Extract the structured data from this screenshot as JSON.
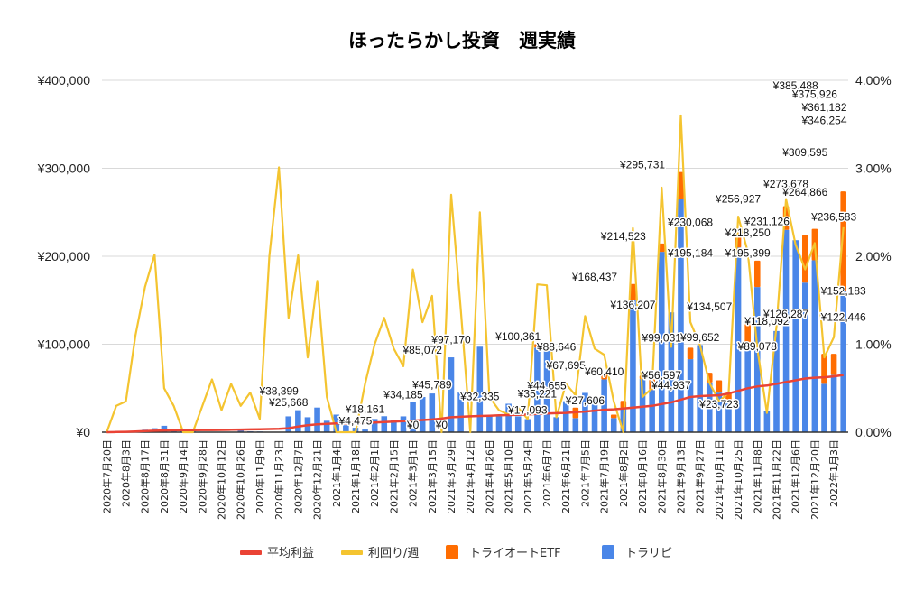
{
  "colors": {
    "average_profit": "#ea4335",
    "yield_per_week": "#f4c430",
    "triauto_etf": "#ff6d01",
    "trarip": "#4a86e8",
    "grid": "#d9d9d9",
    "axis": "#333333"
  },
  "chart_data": {
    "type": "bar",
    "title": "ほったらかし投資　週実績",
    "stacked": true,
    "xlabel": "",
    "ylabel": "",
    "ylim": [
      0,
      400000
    ],
    "y2lim": [
      0,
      0.04
    ],
    "yticks": [
      "¥0",
      "¥100,000",
      "¥200,000",
      "¥300,000",
      "¥400,000"
    ],
    "y2ticks": [
      "0.00%",
      "1.00%",
      "2.00%",
      "3.00%",
      "4.00%"
    ],
    "grid": true,
    "legend_position": "bottom",
    "legend": [
      "平均利益",
      "利回り/週",
      "トライオートETF",
      "トラリピ"
    ],
    "x_tick_labels": [
      "2020年7月20日",
      "2020年8月3日",
      "2020年8月17日",
      "2020年8月31日",
      "2020年9月14日",
      "2020年9月28日",
      "2020年10月12日",
      "2020年10月26日",
      "2020年11月9日",
      "2020年11月23日",
      "2020年12月7日",
      "2020年12月21日",
      "2021年1月4日",
      "2021年1月18日",
      "2021年2月1日",
      "2021年2月15日",
      "2021年3月1日",
      "2021年3月15日",
      "2021年3月29日",
      "2021年4月12日",
      "2021年4月26日",
      "2021年5月10日",
      "2021年5月24日",
      "2021年6月7日",
      "2021年6月21日",
      "2021年7月5日",
      "2021年7月19日",
      "2021年8月2日",
      "2021年8月16日",
      "2021年8月30日",
      "2021年9月13日",
      "2021年9月27日",
      "2021年10月11日",
      "2021年10月25日",
      "2021年11月8日",
      "2021年11月22日",
      "2021年12月6日",
      "2021年12月20日",
      "2022年1月3日"
    ],
    "series": [
      {
        "name": "トラリピ",
        "kind": "bar",
        "axis": "left",
        "values": [
          0,
          300,
          500,
          1500,
          2800,
          4500,
          7288,
          3000,
          1500,
          800,
          0,
          0,
          500,
          300,
          2500,
          1000,
          800,
          500,
          500,
          18000,
          25000,
          17000,
          28000,
          13000,
          20000,
          8000,
          5000,
          3000,
          15000,
          18161,
          14000,
          18000,
          34185,
          40000,
          44000,
          0,
          85072,
          45789,
          0,
          97170,
          19500,
          18000,
          32335,
          18000,
          14900,
          96000,
          100361,
          17093,
          35221,
          16000,
          44655,
          40000,
          60000,
          16000,
          27606,
          150000,
          60410,
          48000,
          205000,
          136207,
          265000,
          83000,
          99031,
          56597,
          44937,
          35000,
          210000,
          99652,
          165000,
          23723,
          115000,
          230000,
          218250,
          170000,
          195399,
          55000,
          65000,
          160000
        ]
      },
      {
        "name": "トライオートETF",
        "kind": "bar",
        "axis": "left",
        "values": [
          0,
          0,
          0,
          0,
          0,
          0,
          0,
          0,
          0,
          0,
          0,
          0,
          0,
          0,
          0,
          0,
          0,
          0,
          0,
          0,
          0,
          0,
          0,
          0,
          0,
          0,
          0,
          0,
          0,
          0,
          0,
          0,
          0,
          0,
          0,
          0,
          0,
          0,
          0,
          0,
          0,
          0,
          0,
          0,
          0,
          4000,
          0,
          0,
          0,
          12000,
          0,
          0,
          7000,
          4000,
          8000,
          18437,
          4000,
          12000,
          9523,
          0,
          30731,
          13000,
          0,
          11000,
          14000,
          9937,
          20068,
          30000,
          30000,
          0,
          0,
          26927,
          0,
          54000,
          35727,
          34092,
          24078,
          113678
        ]
      },
      {
        "name": "利回り/週",
        "kind": "line",
        "axis": "right",
        "values": [
          0.0,
          0.003,
          0.0035,
          0.011,
          0.0165,
          0.0202,
          0.005,
          0.003,
          0.0,
          0.0,
          0.003,
          0.006,
          0.0025,
          0.0055,
          0.003,
          0.0045,
          0.0015,
          0.02,
          0.0301,
          0.013,
          0.0201,
          0.0085,
          0.0172,
          0.004,
          0.0,
          0.0,
          0.0,
          0.0055,
          0.01,
          0.013,
          0.0095,
          0.0075,
          0.0185,
          0.0125,
          0.0155,
          0.0,
          0.027,
          0.014,
          0.0,
          0.025,
          0.004,
          0.0025,
          0.002,
          0.0028,
          0.0015,
          0.0168,
          0.0167,
          0.0017,
          0.0055,
          0.0042,
          0.0132,
          0.0095,
          0.0088,
          0.0035,
          0.0,
          0.0232,
          0.004,
          0.005,
          0.0278,
          0.0097,
          0.036,
          0.0125,
          0.0099,
          0.0056,
          0.0035,
          0.0045,
          0.0245,
          0.0205,
          0.0095,
          0.0022,
          0.012,
          0.0265,
          0.0213,
          0.0185,
          0.0215,
          0.0085,
          0.0108,
          0.0233
        ]
      },
      {
        "name": "平均利益",
        "kind": "line",
        "axis": "left",
        "values": [
          0,
          200,
          400,
          800,
          1200,
          1600,
          2000,
          2200,
          2300,
          2400,
          2500,
          2500,
          2600,
          2800,
          3000,
          3200,
          3400,
          3600,
          3800,
          4500,
          6500,
          8000,
          9000,
          9500,
          10000,
          10200,
          10500,
          10500,
          11000,
          11500,
          12000,
          12500,
          13000,
          13800,
          14500,
          15500,
          17000,
          17500,
          18000,
          18500,
          18800,
          19200,
          19500,
          19800,
          20200,
          20800,
          21200,
          21600,
          22000,
          22800,
          23500,
          24500,
          25500,
          26000,
          27000,
          28000,
          29000,
          30000,
          32000,
          34000,
          37000,
          40000,
          41000,
          41500,
          42000,
          44000,
          47000,
          50000,
          52000,
          53000,
          55000,
          57000,
          59000,
          61000,
          62000,
          62500,
          63500,
          65000
        ]
      }
    ],
    "data_labels": [
      {
        "week": 19,
        "text": "¥38,399"
      },
      {
        "week": 36,
        "text": "¥85,072"
      },
      {
        "week": 37,
        "text": "¥45,789"
      },
      {
        "week": 38,
        "text": "¥0"
      },
      {
        "week": 35,
        "text": "¥0"
      },
      {
        "week": 33,
        "text": "¥34,185"
      },
      {
        "week": 21,
        "text": "¥25,668"
      },
      {
        "week": 28,
        "text": "¥4,475"
      },
      {
        "week": 29,
        "text": "¥18,161"
      },
      {
        "week": 39,
        "text": "¥97,170"
      },
      {
        "week": 42,
        "text": "¥32,335"
      },
      {
        "week": 46,
        "text": "¥100,361"
      },
      {
        "week": 47,
        "text": "¥17,093"
      },
      {
        "week": 50,
        "text": "¥44,655"
      },
      {
        "week": 48,
        "text": "¥35,221"
      },
      {
        "week": 51,
        "text": "¥88,646"
      },
      {
        "week": 52,
        "text": "¥67,695"
      },
      {
        "week": 54,
        "text": "¥27,606"
      },
      {
        "week": 55,
        "text": "¥168,437"
      },
      {
        "week": 56,
        "text": "¥60,410"
      },
      {
        "week": 58,
        "text": "¥214,523"
      },
      {
        "week": 59,
        "text": "¥136,207"
      },
      {
        "week": 60,
        "text": "¥295,731"
      },
      {
        "week": 62,
        "text": "¥99,031"
      },
      {
        "week": 63,
        "text": "¥56,597"
      },
      {
        "week": 64,
        "text": "¥44,937"
      },
      {
        "week": 66,
        "text": "¥230,068"
      },
      {
        "week": 66,
        "text": "¥195,184"
      },
      {
        "week": 67,
        "text": "¥99,652"
      },
      {
        "week": 69,
        "text": "¥23,723"
      },
      {
        "week": 68,
        "text": "¥134,507"
      },
      {
        "week": 71,
        "text": "¥256,927"
      },
      {
        "week": 72,
        "text": "¥218,250"
      },
      {
        "week": 72,
        "text": "¥195,399"
      },
      {
        "week": 74,
        "text": "¥231,126"
      },
      {
        "week": 74,
        "text": "¥118,092"
      },
      {
        "week": 73,
        "text": "¥89,078"
      },
      {
        "week": 76,
        "text": "¥126,287"
      },
      {
        "week": 76,
        "text": "¥273,678"
      },
      {
        "week": 78,
        "text": "¥385,488"
      },
      {
        "week": 79,
        "text": "¥309,595"
      },
      {
        "week": 79,
        "text": "¥264,866"
      },
      {
        "week": 80,
        "text": "¥375,926"
      },
      {
        "week": 81,
        "text": "¥361,182"
      },
      {
        "week": 81,
        "text": "¥346,254"
      },
      {
        "week": 82,
        "text": "¥236,583"
      },
      {
        "week": 83,
        "text": "¥152,183"
      },
      {
        "week": 83,
        "text": "¥122,446"
      }
    ]
  }
}
